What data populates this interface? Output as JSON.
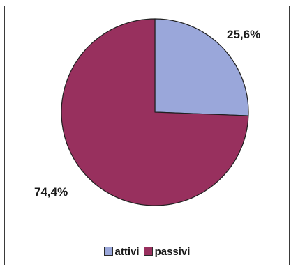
{
  "chart_data": {
    "type": "pie",
    "title": "",
    "slices": [
      {
        "label": "attivi",
        "value": 25.6,
        "display": "25,6%",
        "color": "#9aa7da"
      },
      {
        "label": "passivi",
        "value": 74.4,
        "display": "74,4%",
        "color": "#98305e"
      }
    ],
    "start_angle_deg": 0,
    "direction": "clockwise",
    "legend_position": "bottom",
    "border_color": "#1f1f1f"
  }
}
